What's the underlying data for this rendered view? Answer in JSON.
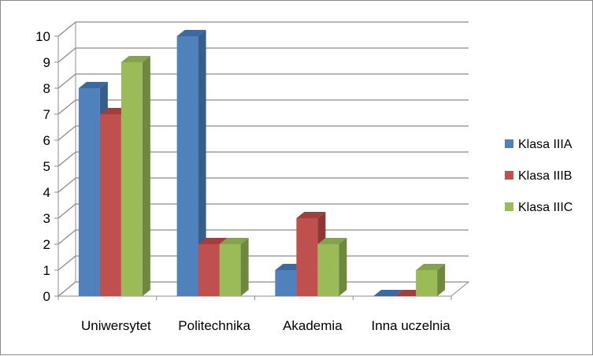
{
  "chart_data": {
    "type": "bar",
    "title": "",
    "xlabel": "",
    "ylabel": "",
    "ylim": [
      0,
      10
    ],
    "yticks": [
      0,
      1,
      2,
      3,
      4,
      5,
      6,
      7,
      8,
      9,
      10
    ],
    "categories": [
      "Uniwersytet",
      "Politechnika",
      "Akademia",
      "Inna uczelnia"
    ],
    "series": [
      {
        "name": "Klasa IIIA",
        "values": [
          8,
          10,
          1,
          0
        ],
        "color": "#4f81bd",
        "side_color": "#385d8a",
        "top_color": "#3b6aa0"
      },
      {
        "name": "Klasa IIIB",
        "values": [
          7,
          2,
          3,
          0
        ],
        "color": "#c0504d",
        "side_color": "#8c3836",
        "top_color": "#a23f3c"
      },
      {
        "name": "Klasa IIIC",
        "values": [
          9,
          2,
          2,
          1
        ],
        "color": "#9bbb59",
        "side_color": "#6f883f",
        "top_color": "#85a34a"
      }
    ],
    "grid": true,
    "legend_position": "right",
    "style": "3d-clustered-column"
  }
}
